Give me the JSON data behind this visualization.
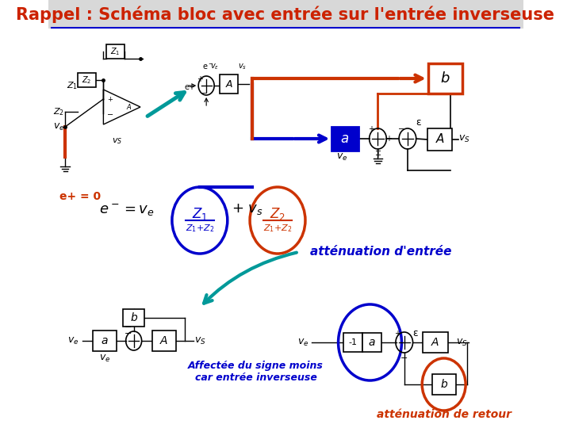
{
  "title": "Rappel : Schéma bloc avec entrée sur l'entrée inverseuse",
  "title_color": "#CC2200",
  "title_fontsize": 15,
  "bg_color": "#FFFFFF",
  "blue_dark": "#0000CC",
  "orange_red": "#CC3300",
  "teal": "#009999",
  "black": "#000000",
  "title_bg": "#D8D8D8",
  "ep_eq0_label": "e+ = 0",
  "attenuation_entree": "atténuation d'entrée",
  "attenuation_retour": "atténuation de retour",
  "affectee_text1": "Affectée du signe moins",
  "affectee_text2": "car entrée inverseuse"
}
